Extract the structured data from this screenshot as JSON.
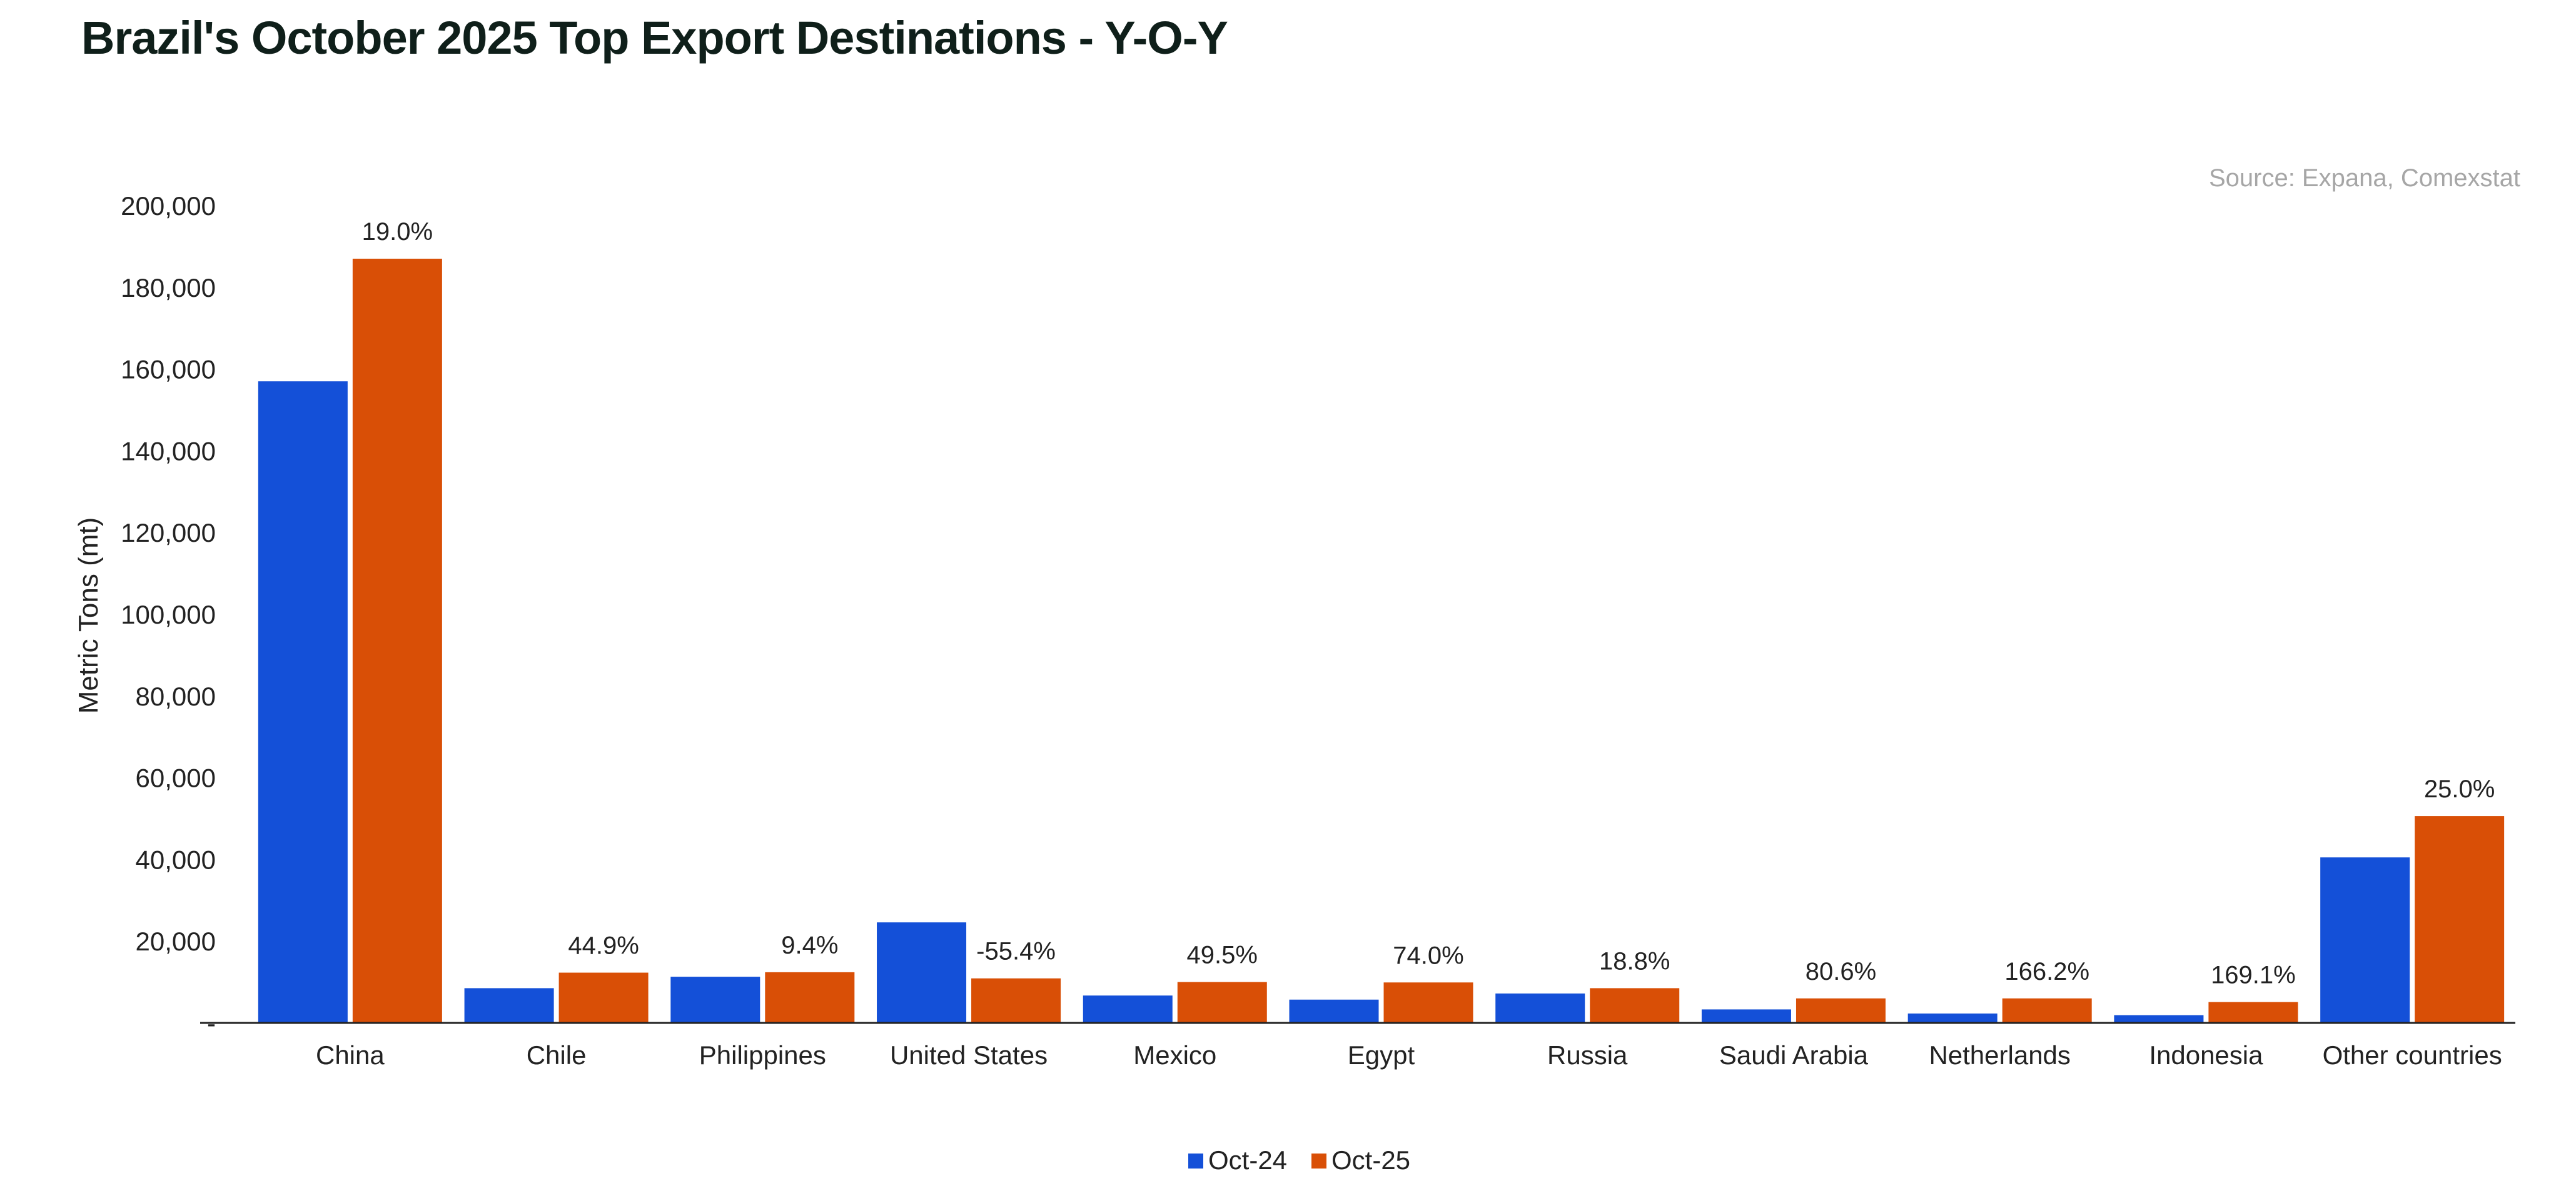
{
  "colors": {
    "oct24": "#1450d8",
    "oct25": "#d94f06",
    "axis": "#222222",
    "source": "#a6a6a6"
  },
  "chart_data": {
    "type": "bar",
    "title": "Brazil's October 2025 Top Export Destinations - Y-O-Y",
    "source": "Source: Expana, Comexstat",
    "ylabel": "Metric Tons (mt)",
    "xlabel": "",
    "ylim": [
      0,
      200000
    ],
    "yticks": [
      0,
      20000,
      40000,
      60000,
      80000,
      100000,
      120000,
      140000,
      160000,
      180000,
      200000
    ],
    "ytick_labels": [
      "-",
      "20,000",
      "40,000",
      "60,000",
      "80,000",
      "100,000",
      "120,000",
      "140,000",
      "160,000",
      "180,000",
      "200,000"
    ],
    "categories": [
      "China",
      "Chile",
      "Philippines",
      "United States",
      "Mexico",
      "Egypt",
      "Russia",
      "Saudi Arabia",
      "Netherlands",
      "Indonesia",
      "Other countries"
    ],
    "series": [
      {
        "name": "Oct-24",
        "values": [
          157000,
          8500,
          11300,
          24600,
          6700,
          5700,
          7200,
          3300,
          2300,
          1900,
          40500
        ]
      },
      {
        "name": "Oct-25",
        "values": [
          187000,
          12300,
          12400,
          10900,
          10000,
          9900,
          8500,
          6000,
          6000,
          5100,
          50600
        ]
      }
    ],
    "data_labels": [
      "19.0%",
      "44.9%",
      "9.4%",
      "-55.4%",
      "49.5%",
      "74.0%",
      "18.8%",
      "80.6%",
      "166.2%",
      "169.1%",
      "25.0%"
    ],
    "grid": false,
    "legend_position": "bottom-center"
  }
}
